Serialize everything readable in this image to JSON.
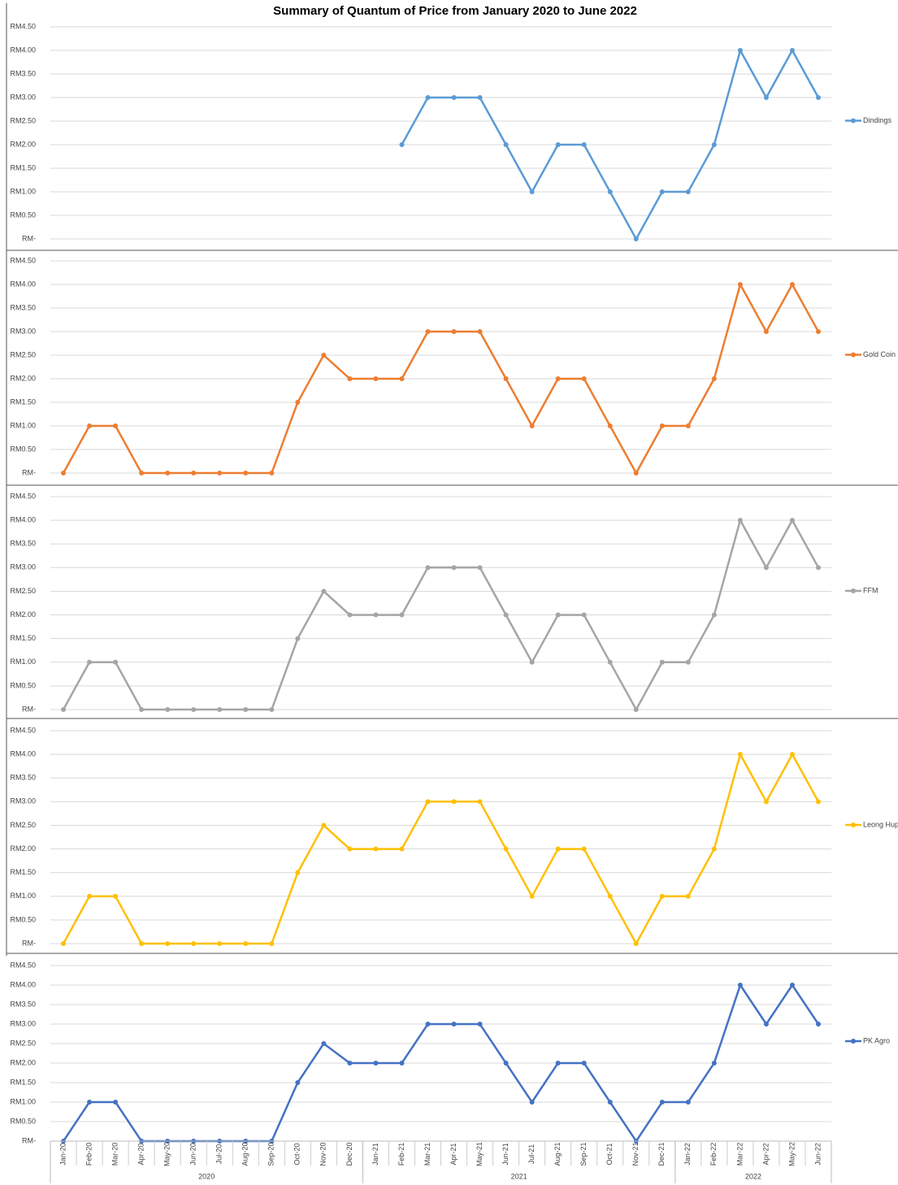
{
  "chart_data": {
    "type": "line",
    "title": "Summary of Quantum of Price from January 2020 to June 2022",
    "categories": [
      "Jan-20",
      "Feb-20",
      "Mar-20",
      "Apr-20",
      "May-20",
      "Jun-20",
      "Jul-20",
      "Aug-20",
      "Sep-20",
      "Oct-20",
      "Nov-20",
      "Dec-20",
      "Jan-21",
      "Feb-21",
      "Mar-21",
      "Apr-21",
      "May-21",
      "Jun-21",
      "Jul-21",
      "Aug-21",
      "Sep-21",
      "Oct-21",
      "Nov-21",
      "Dec-21",
      "Jan-22",
      "Feb-22",
      "Mar-22",
      "Apr-22",
      "May-22",
      "Jun-22"
    ],
    "x_groups": [
      {
        "label": "2020",
        "categories": 12
      },
      {
        "label": "2021",
        "categories": 12
      },
      {
        "label": "2022",
        "categories": 6
      }
    ],
    "ylim": [
      0,
      4.5
    ],
    "yticks": [
      {
        "value": 0,
        "label": "RM-"
      },
      {
        "value": 0.5,
        "label": "RM0.50"
      },
      {
        "value": 1,
        "label": "RM1.00"
      },
      {
        "value": 1.5,
        "label": "RM1.50"
      },
      {
        "value": 2,
        "label": "RM2.00"
      },
      {
        "value": 2.5,
        "label": "RM2.50"
      },
      {
        "value": 3,
        "label": "RM3.00"
      },
      {
        "value": 3.5,
        "label": "RM3.50"
      },
      {
        "value": 4,
        "label": "RM4.00"
      },
      {
        "value": 4.5,
        "label": "RM4.50"
      }
    ],
    "grid": true,
    "legend": "right",
    "series": [
      {
        "name": "Dindings",
        "color": "#5b9bd5",
        "values": [
          null,
          null,
          null,
          null,
          null,
          null,
          null,
          null,
          null,
          null,
          null,
          null,
          null,
          2,
          3,
          3,
          3,
          2,
          1,
          2,
          2,
          1,
          0,
          1,
          1,
          2,
          4,
          3,
          4,
          3
        ]
      },
      {
        "name": "Gold Coin",
        "color": "#ed7d31",
        "values": [
          0,
          1,
          1,
          0,
          0,
          0,
          0,
          0,
          0,
          1.5,
          2.5,
          2,
          2,
          2,
          3,
          3,
          3,
          2,
          1,
          2,
          2,
          1,
          0,
          1,
          1,
          2,
          4,
          3,
          4,
          3
        ]
      },
      {
        "name": "FFM",
        "color": "#a5a5a5",
        "values": [
          0,
          1,
          1,
          0,
          0,
          0,
          0,
          0,
          0,
          1.5,
          2.5,
          2,
          2,
          2,
          3,
          3,
          3,
          2,
          1,
          2,
          2,
          1,
          0,
          1,
          1,
          2,
          4,
          3,
          4,
          3
        ]
      },
      {
        "name": "Leong Hup",
        "color": "#ffc000",
        "values": [
          0,
          1,
          1,
          0,
          0,
          0,
          0,
          0,
          0,
          1.5,
          2.5,
          2,
          2,
          2,
          3,
          3,
          3,
          2,
          1,
          2,
          2,
          1,
          0,
          1,
          1,
          2,
          4,
          3,
          4,
          3
        ]
      },
      {
        "name": "PK Agro",
        "color": "#4472c4",
        "values": [
          0,
          1,
          1,
          0,
          0,
          0,
          0,
          0,
          0,
          1.5,
          2.5,
          2,
          2,
          2,
          3,
          3,
          3,
          2,
          1,
          2,
          2,
          1,
          0,
          1,
          1,
          2,
          4,
          3,
          4,
          3
        ]
      }
    ]
  }
}
